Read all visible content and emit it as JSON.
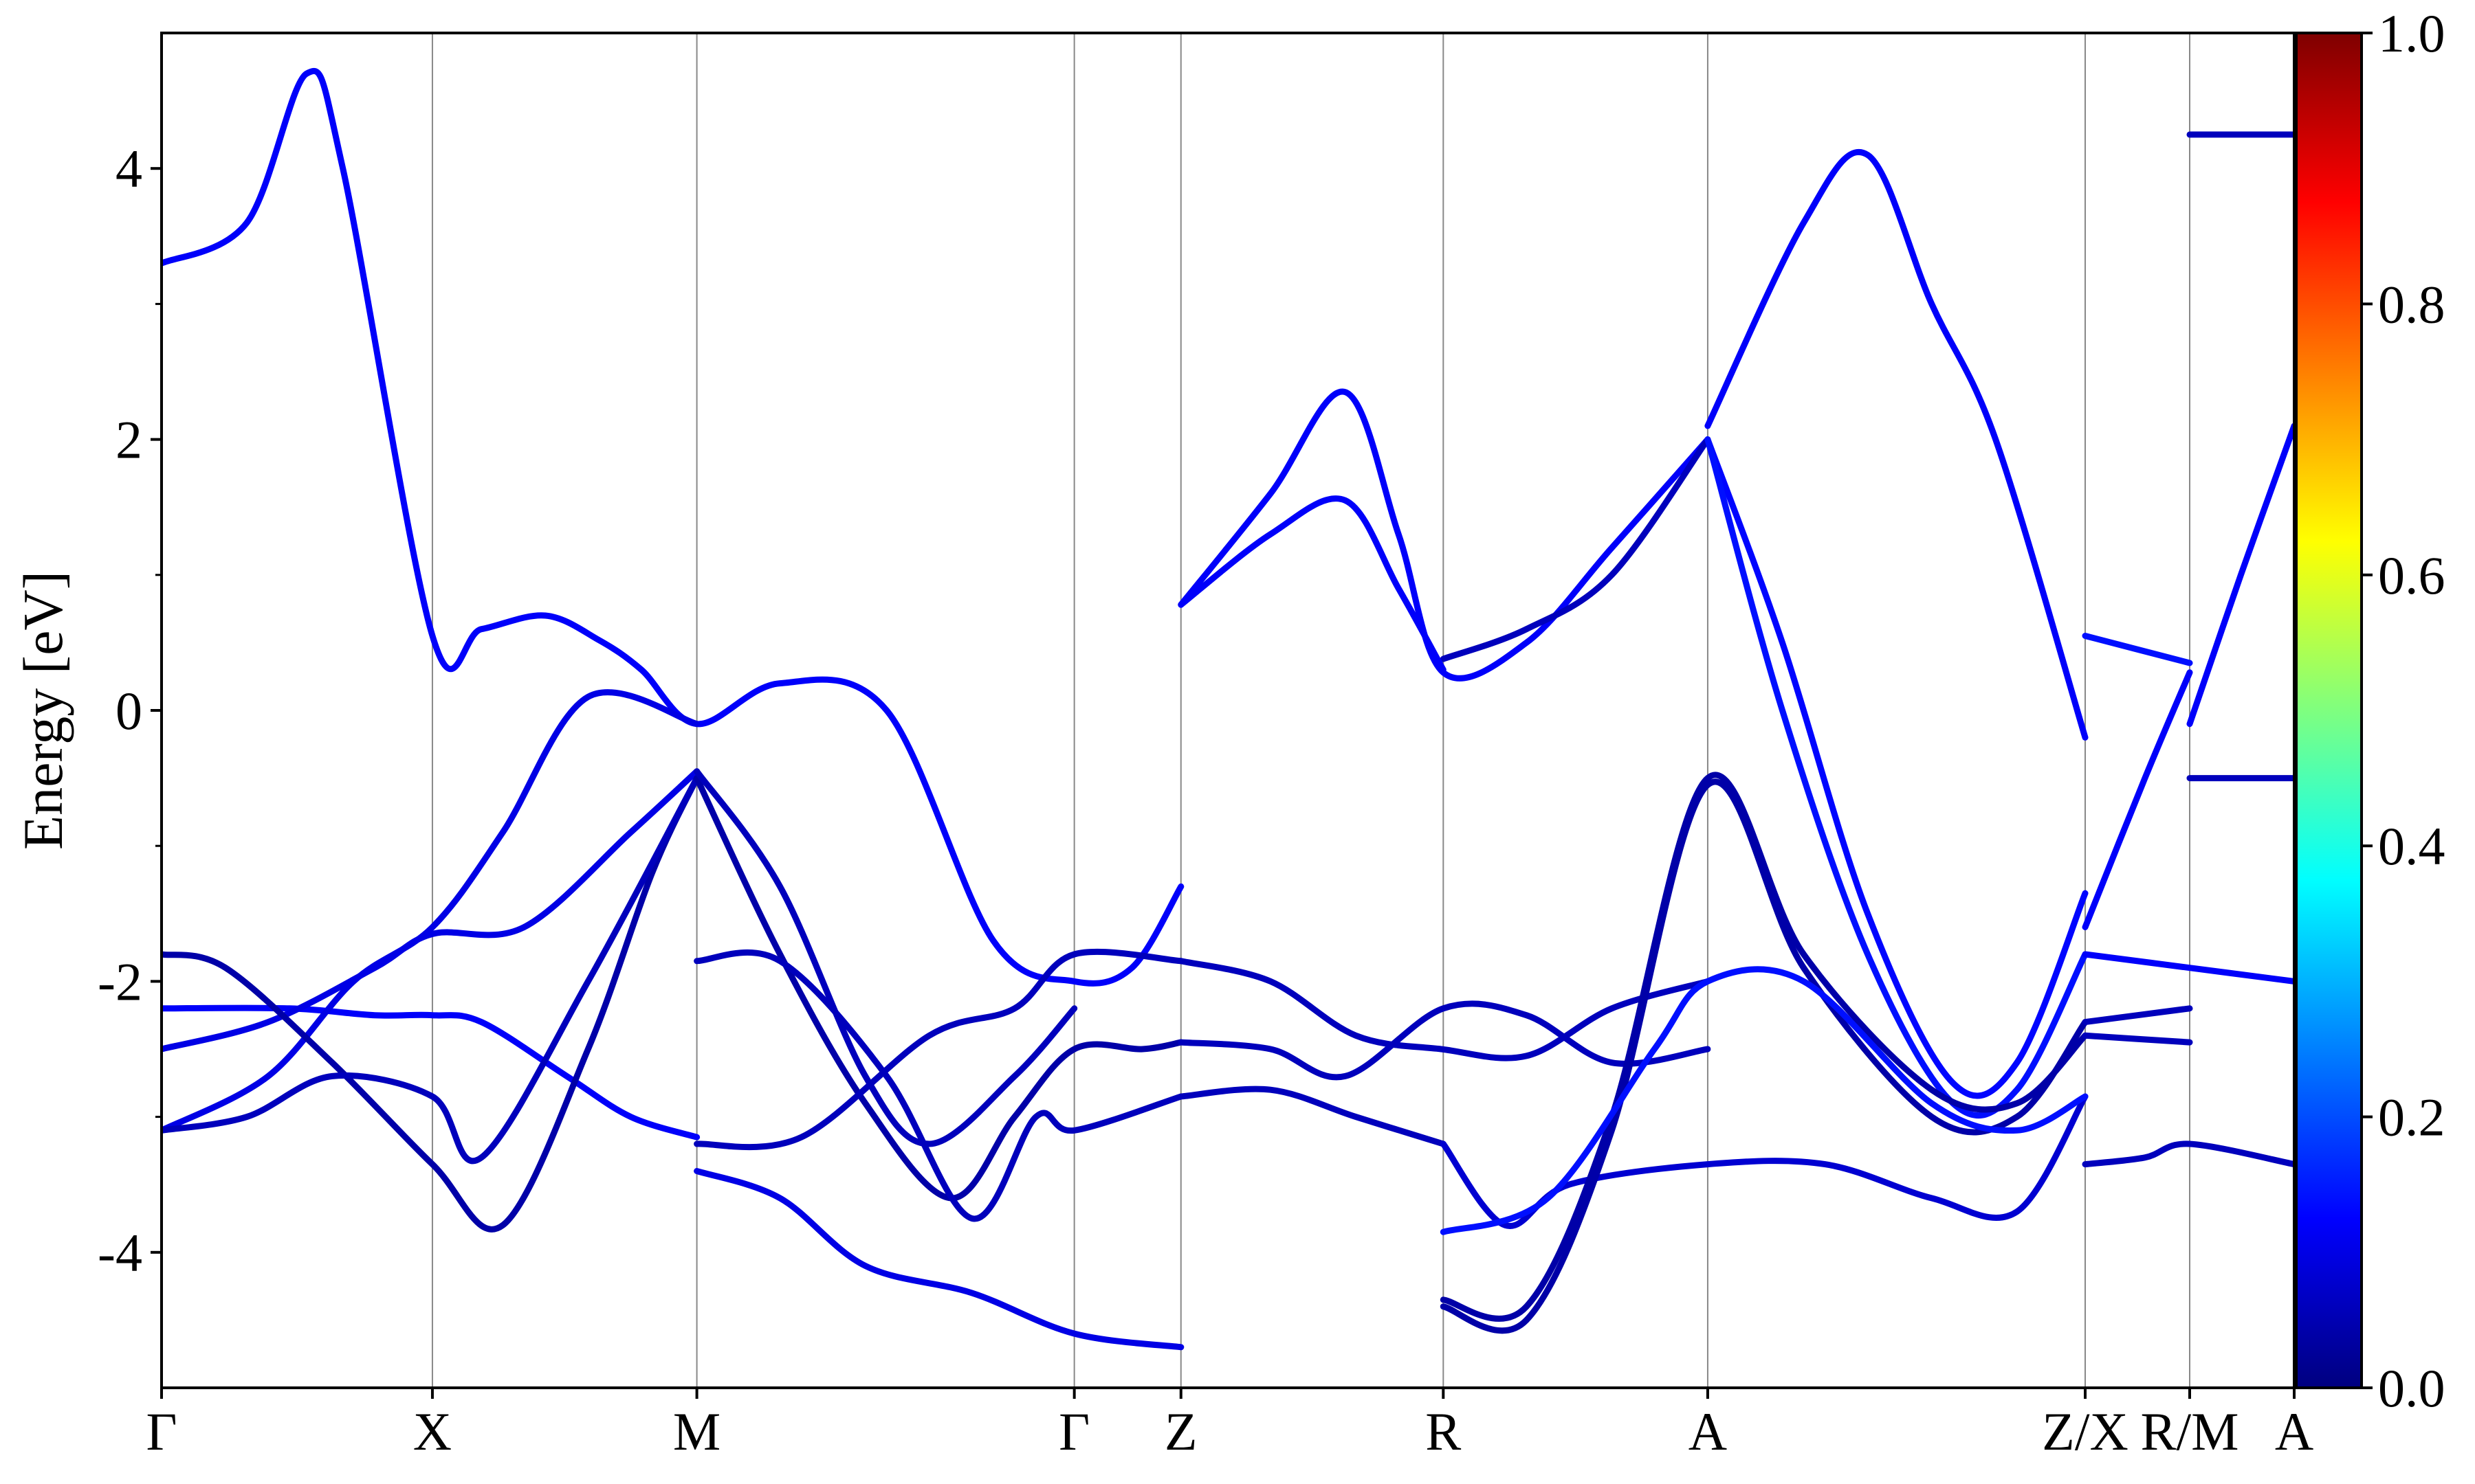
{
  "chart_data": {
    "type": "line",
    "title": "",
    "xlabel": "",
    "ylabel": "Energy [eV]",
    "ylim": [
      -5,
      5
    ],
    "y_ticks": [
      {
        "value": 4,
        "label": "4"
      },
      {
        "value": 2,
        "label": "2"
      },
      {
        "value": 0,
        "label": "0"
      },
      {
        "value": -2,
        "label": "-2"
      },
      {
        "value": -4,
        "label": "-4"
      }
    ],
    "y_minor_ticks": [
      3,
      1,
      -1,
      -3
    ],
    "xlim": [
      0,
      1
    ],
    "k_points": [
      {
        "label": "Γ",
        "x": 0.0
      },
      {
        "label": "X",
        "x": 0.127
      },
      {
        "label": "M",
        "x": 0.251
      },
      {
        "label": "Γ",
        "x": 0.428
      },
      {
        "label": "Z",
        "x": 0.478
      },
      {
        "label": "R",
        "x": 0.601
      },
      {
        "label": "A",
        "x": 0.725
      },
      {
        "label": "Z/X",
        "x": 0.902
      },
      {
        "label": "R/M",
        "x": 0.951
      },
      {
        "label": "A",
        "x": 1.0
      }
    ],
    "grid": "vertical lines at high-symmetry points",
    "colorbar": {
      "colormap": "jet",
      "range": [
        0.0,
        1.0
      ],
      "ticks": [
        {
          "value": 1.0,
          "label": "1.0"
        },
        {
          "value": 0.8,
          "label": "0.8"
        },
        {
          "value": 0.6,
          "label": "0.6"
        },
        {
          "value": 0.4,
          "label": "0.4"
        },
        {
          "value": 0.2,
          "label": "0.2"
        },
        {
          "value": 0.0,
          "label": "0.0"
        }
      ]
    },
    "series": [
      {
        "w": 0.12,
        "x": [
          0,
          0.04,
          0.068,
          0.085,
          0.127,
          0.15,
          0.18,
          0.205,
          0.225,
          0.251,
          0.29,
          0.34,
          0.39,
          0.428,
          0.455,
          0.478
        ],
        "y": [
          3.3,
          3.6,
          4.7,
          4.0,
          0.55,
          0.6,
          0.7,
          0.52,
          0.3,
          -0.1,
          0.2,
          0.0,
          -1.7,
          -2.0,
          -1.9,
          -1.3
        ]
      },
      {
        "w": 0.12,
        "x": [
          0.478,
          0.52,
          0.555,
          0.58,
          0.601,
          0.64,
          0.68,
          0.725
        ],
        "y": [
          0.78,
          1.6,
          2.35,
          1.3,
          0.28,
          0.5,
          1.2,
          2.0
        ]
      },
      {
        "w": 0.06,
        "x": [
          0.601,
          0.64,
          0.68,
          0.725
        ],
        "y": [
          0.38,
          0.6,
          1.0,
          2.0
        ]
      },
      {
        "w": 0.12,
        "x": [
          0.478,
          0.52,
          0.555,
          0.58,
          0.601
        ],
        "y": [
          0.78,
          1.3,
          1.55,
          0.9,
          0.3
        ]
      },
      {
        "w": 0.13,
        "x": [
          0.725,
          0.76,
          0.8,
          0.84,
          0.87,
          0.902
        ],
        "y": [
          2.0,
          0.5,
          -1.5,
          -2.75,
          -2.6,
          -1.35
        ]
      },
      {
        "w": 0.14,
        "x": [
          0.725,
          0.76,
          0.8,
          0.84,
          0.87,
          0.902
        ],
        "y": [
          2.0,
          0.0,
          -1.8,
          -2.9,
          -2.8,
          -1.8
        ]
      },
      {
        "w": 0.12,
        "x": [
          0.725,
          0.77,
          0.8,
          0.83,
          0.86,
          0.902
        ],
        "y": [
          2.1,
          3.6,
          4.1,
          3.0,
          2.0,
          -0.2
        ]
      },
      {
        "w": 0.14,
        "x": [
          0.902,
          0.951
        ],
        "y": [
          0.55,
          0.35
        ]
      },
      {
        "w": 0.12,
        "x": [
          0.902,
          0.93,
          0.951
        ],
        "y": [
          -1.6,
          -0.5,
          0.28
        ]
      },
      {
        "w": 0.12,
        "x": [
          0.951,
          0.975,
          1.0
        ],
        "y": [
          -0.1,
          1.0,
          2.1
        ]
      },
      {
        "w": 0.06,
        "x": [
          0.951,
          1.0
        ],
        "y": [
          -0.5,
          -0.5
        ]
      },
      {
        "w": 0.06,
        "x": [
          0.951,
          1.0
        ],
        "y": [
          4.25,
          4.25
        ]
      },
      {
        "w": 0.12,
        "x": [
          0.0,
          0.06,
          0.1,
          0.127,
          0.15,
          0.19,
          0.22,
          0.251
        ],
        "y": [
          -2.2,
          -2.2,
          -2.25,
          -2.25,
          -2.3,
          -2.7,
          -3.0,
          -3.15
        ]
      },
      {
        "w": 0.1,
        "x": [
          0.0,
          0.05,
          0.09,
          0.127,
          0.16,
          0.2,
          0.251
        ],
        "y": [
          -3.1,
          -2.7,
          -2.0,
          -1.6,
          -0.9,
          0.1,
          -0.1
        ]
      },
      {
        "w": 0.1,
        "x": [
          0.0,
          0.05,
          0.1,
          0.127,
          0.17,
          0.22,
          0.251
        ],
        "y": [
          -2.5,
          -2.3,
          -1.9,
          -1.65,
          -1.6,
          -0.9,
          -0.45
        ]
      },
      {
        "w": 0.04,
        "x": [
          0.0,
          0.03,
          0.08,
          0.127,
          0.16,
          0.2,
          0.23,
          0.251
        ],
        "y": [
          -1.8,
          -1.9,
          -2.6,
          -3.35,
          -3.8,
          -2.5,
          -1.2,
          -0.5
        ]
      },
      {
        "w": 0.06,
        "x": [
          0.0,
          0.04,
          0.08,
          0.127,
          0.15,
          0.2,
          0.251
        ],
        "y": [
          -3.1,
          -3.0,
          -2.7,
          -2.85,
          -3.3,
          -2.0,
          -0.5
        ]
      },
      {
        "w": 0.04,
        "x": [
          0.251,
          0.29,
          0.33,
          0.37,
          0.4,
          0.428,
          0.46,
          0.478
        ],
        "y": [
          -0.5,
          -1.8,
          -2.9,
          -3.6,
          -3.0,
          -2.5,
          -2.5,
          -2.45
        ]
      },
      {
        "w": 0.06,
        "x": [
          0.251,
          0.29,
          0.33,
          0.36,
          0.4,
          0.428
        ],
        "y": [
          -0.45,
          -1.3,
          -2.7,
          -3.2,
          -2.7,
          -2.2
        ]
      },
      {
        "w": 0.06,
        "x": [
          0.251,
          0.29,
          0.34,
          0.38,
          0.41,
          0.428,
          0.478
        ],
        "y": [
          -1.85,
          -1.85,
          -2.7,
          -3.75,
          -3.0,
          -3.1,
          -2.85
        ]
      },
      {
        "w": 0.06,
        "x": [
          0.251,
          0.3,
          0.36,
          0.4,
          0.428,
          0.478
        ],
        "y": [
          -3.2,
          -3.15,
          -2.4,
          -2.2,
          -1.8,
          -1.85
        ]
      },
      {
        "w": 0.1,
        "x": [
          0.251,
          0.29,
          0.33,
          0.38,
          0.428,
          0.478
        ],
        "y": [
          -3.4,
          -3.6,
          -4.1,
          -4.3,
          -4.6,
          -4.7
        ]
      },
      {
        "w": 0.06,
        "x": [
          0.478,
          0.52,
          0.56,
          0.6,
          0.64,
          0.68,
          0.725
        ],
        "y": [
          -1.85,
          -2.0,
          -2.4,
          -2.5,
          -2.55,
          -2.2,
          -2.0
        ]
      },
      {
        "w": 0.06,
        "x": [
          0.478,
          0.52,
          0.56,
          0.601
        ],
        "y": [
          -2.85,
          -2.8,
          -3.0,
          -3.2
        ]
      },
      {
        "w": 0.06,
        "x": [
          0.478,
          0.52,
          0.555,
          0.601,
          0.64,
          0.68,
          0.725
        ],
        "y": [
          -2.45,
          -2.5,
          -2.7,
          -2.2,
          -2.25,
          -2.6,
          -2.5
        ]
      },
      {
        "w": 0.08,
        "x": [
          0.601,
          0.63,
          0.66,
          0.725,
          0.78,
          0.83,
          0.87,
          0.902
        ],
        "y": [
          -3.2,
          -3.8,
          -3.5,
          -3.35,
          -3.35,
          -3.6,
          -3.7,
          -2.85
        ]
      },
      {
        "w": 0.04,
        "x": [
          0.601,
          0.64,
          0.68,
          0.725,
          0.77,
          0.83,
          0.87,
          0.902
        ],
        "y": [
          -4.35,
          -4.4,
          -3.0,
          -0.5,
          -1.8,
          -2.8,
          -2.9,
          -2.4
        ]
      },
      {
        "w": 0.04,
        "x": [
          0.601,
          0.64,
          0.68,
          0.725,
          0.77,
          0.83,
          0.87,
          0.902
        ],
        "y": [
          -4.4,
          -4.5,
          -3.1,
          -0.55,
          -1.9,
          -3.0,
          -3.0,
          -2.3
        ]
      },
      {
        "w": 0.14,
        "x": [
          0.601,
          0.65,
          0.7,
          0.725,
          0.77,
          0.83,
          0.87,
          0.902
        ],
        "y": [
          -3.85,
          -3.6,
          -2.5,
          -2.0,
          -2.0,
          -2.9,
          -3.1,
          -2.85
        ]
      },
      {
        "w": 0.06,
        "x": [
          0.902,
          0.951
        ],
        "y": [
          -2.3,
          -2.2
        ]
      },
      {
        "w": 0.06,
        "x": [
          0.902,
          0.951
        ],
        "y": [
          -2.4,
          -2.45
        ]
      },
      {
        "w": 0.06,
        "x": [
          0.902,
          0.93,
          0.951,
          1.0
        ],
        "y": [
          -3.35,
          -3.3,
          -3.2,
          -3.35
        ]
      },
      {
        "w": 0.12,
        "x": [
          0.902,
          0.951,
          1.0
        ],
        "y": [
          -1.8,
          -1.9,
          -2.0
        ]
      }
    ]
  }
}
